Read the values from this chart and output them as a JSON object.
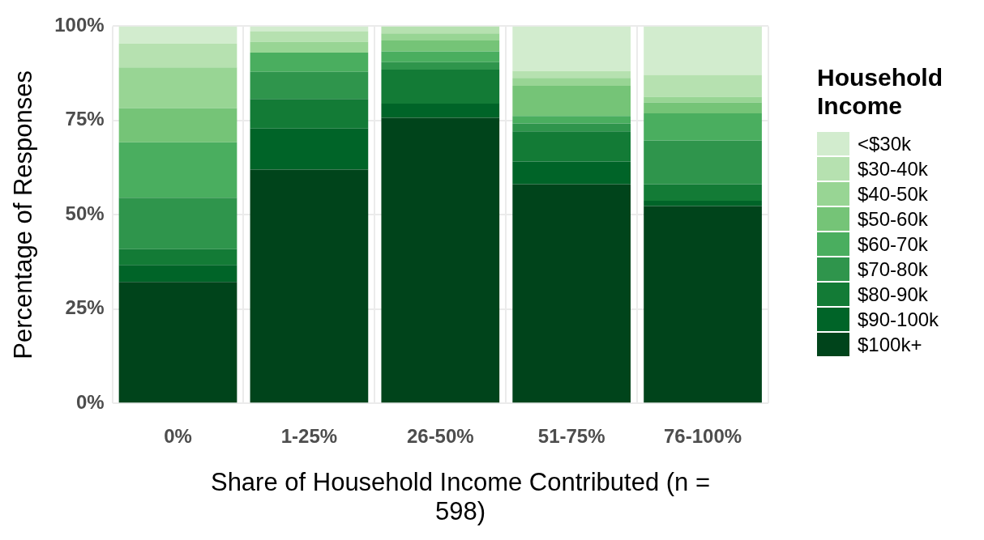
{
  "chart_data": {
    "type": "bar",
    "stacked": true,
    "xlabel": "Share of Household Income Contributed (n = 598)",
    "ylabel": "Percentage of Responses",
    "legend_title": "Household Income",
    "legend": "right",
    "grid": true,
    "categories": [
      "0%",
      "1-25%",
      "26-50%",
      "51-75%",
      "76-100%"
    ],
    "ylim": [
      0,
      100
    ],
    "yticks": [
      {
        "value": 0,
        "label": "0%"
      },
      {
        "value": 25,
        "label": "25%"
      },
      {
        "value": 50,
        "label": "50%"
      },
      {
        "value": 75,
        "label": "75%"
      },
      {
        "value": 100,
        "label": "100%"
      }
    ],
    "series": [
      {
        "name": "$100k+",
        "color": "#00441b",
        "values": [
          32.2,
          62.0,
          75.7,
          58.1,
          52.3
        ]
      },
      {
        "name": "$90-100k",
        "color": "#006428",
        "values": [
          4.5,
          10.9,
          3.8,
          6.0,
          1.4
        ]
      },
      {
        "name": "$80-90k",
        "color": "#137b36",
        "values": [
          4.2,
          7.8,
          9.0,
          8.0,
          4.4
        ]
      },
      {
        "name": "$70-80k",
        "color": "#2f954c",
        "values": [
          13.6,
          7.2,
          2.0,
          2.1,
          11.6
        ]
      },
      {
        "name": "$60-70k",
        "color": "#4aae5f",
        "values": [
          14.7,
          5.1,
          2.8,
          2.0,
          7.2
        ]
      },
      {
        "name": "$50-60k",
        "color": "#75c477",
        "values": [
          9.1,
          0,
          2.9,
          8.0,
          2.9
        ]
      },
      {
        "name": "$40-50k",
        "color": "#98d594",
        "values": [
          10.8,
          2.9,
          1.9,
          2.1,
          1.5
        ]
      },
      {
        "name": "$30-40k",
        "color": "#b6e1b0",
        "values": [
          6.3,
          2.8,
          1.9,
          1.8,
          5.8
        ]
      },
      {
        "name": "<$30k",
        "color": "#d2ecce",
        "values": [
          4.6,
          1.3,
          0,
          11.9,
          12.9
        ]
      }
    ]
  }
}
